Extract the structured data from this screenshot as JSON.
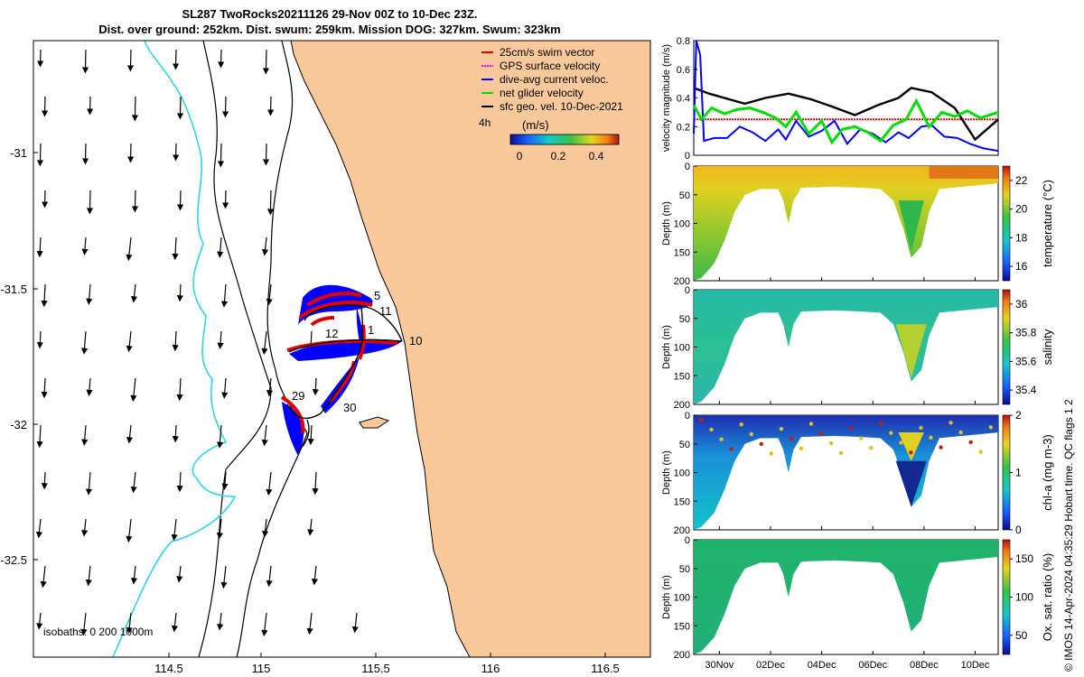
{
  "header": {
    "title_line1": "SL287 TwoRocks20211126 29-Nov 00Z to 10-Dec 23Z.",
    "title_line2": "Dist. over ground: 252km. Dist. swum: 259km. Mission DOG: 327km. Swum: 323km"
  },
  "map": {
    "x_ticks": [
      "114.5",
      "115",
      "115.5",
      "116",
      "116.5"
    ],
    "y_ticks": [
      "-31",
      "-31.5",
      "-32",
      "-32.5"
    ],
    "isobaths_label": "isobaths: 0   200  1000m",
    "legend": [
      {
        "label": "25cm/s swim vector",
        "color": "#e00000"
      },
      {
        "label": "GPS surface velocity",
        "color": "#ff00ff"
      },
      {
        "label": "dive-avg current veloc.",
        "color": "#0000ff"
      },
      {
        "label": "net glider velocity",
        "color": "#00dd00"
      },
      {
        "label": "sfc geo. vel. 10-Dec-2021",
        "color": "#000000"
      }
    ],
    "legend_marker": "4h",
    "colorbar": {
      "label": "(m/s)",
      "ticks": [
        "0",
        "0.2",
        "0.4"
      ]
    },
    "day_labels": [
      "5",
      "11",
      "1",
      "12",
      "10",
      "29",
      "30"
    ],
    "colors": {
      "land": "#f9c99b",
      "sea": "#ffffff",
      "isobath_200": "#00e0e0",
      "glider_blue": "#0000ff",
      "glider_red": "#e00000"
    }
  },
  "chart_data": [
    {
      "type": "line",
      "ylabel": "velocity magnitude (m/s)",
      "ylim": [
        0,
        0.8
      ],
      "y_ticks": [
        "0",
        "0.2",
        "0.4",
        "0.6",
        "0.8"
      ],
      "xlim_days": [
        29,
        40.9
      ],
      "series": [
        {
          "name": "25cm/s swim vector",
          "color": "#e00000",
          "x": [
            29,
            40.9
          ],
          "values": [
            0.25,
            0.25
          ]
        },
        {
          "name": "sfc geo. vel. 10-Dec-2021",
          "color": "#000000",
          "x": [
            29,
            29.6,
            30.4,
            31.0,
            31.8,
            32.7,
            33.6,
            34.4,
            35.3,
            36.2,
            37.0,
            37.5,
            38.3,
            39.2,
            40.0,
            40.9
          ],
          "values": [
            0.47,
            0.43,
            0.39,
            0.36,
            0.4,
            0.43,
            0.39,
            0.34,
            0.28,
            0.35,
            0.4,
            0.47,
            0.44,
            0.33,
            0.11,
            0.25
          ]
        },
        {
          "name": "dive-avg current veloc.",
          "color": "#0000ff",
          "x": [
            29,
            29.1,
            29.25,
            29.4,
            29.8,
            30.3,
            30.8,
            31.3,
            31.8,
            32.3,
            32.6,
            33.0,
            33.5,
            34.0,
            34.5,
            35.0,
            35.5,
            36.0,
            36.5,
            37.0,
            37.4,
            37.9,
            38.3,
            38.8,
            39.3,
            39.8,
            40.3,
            40.9
          ],
          "values": [
            0.15,
            0.8,
            0.7,
            0.1,
            0.12,
            0.12,
            0.2,
            0.16,
            0.1,
            0.18,
            0.11,
            0.24,
            0.13,
            0.17,
            0.24,
            0.08,
            0.18,
            0.15,
            0.09,
            0.16,
            0.12,
            0.2,
            0.21,
            0.13,
            0.12,
            0.08,
            0.05,
            0.03
          ]
        },
        {
          "name": "net glider velocity",
          "color": "#00dd00",
          "x": [
            29,
            29.3,
            29.7,
            30.2,
            30.7,
            31.2,
            31.7,
            32.2,
            32.6,
            33.0,
            33.5,
            34.0,
            34.4,
            34.8,
            35.3,
            35.8,
            36.3,
            36.8,
            37.3,
            37.7,
            38.2,
            38.7,
            39.2,
            39.7,
            40.2,
            40.9
          ],
          "values": [
            0.35,
            0.25,
            0.33,
            0.29,
            0.32,
            0.33,
            0.3,
            0.26,
            0.2,
            0.3,
            0.15,
            0.24,
            0.09,
            0.18,
            0.2,
            0.16,
            0.1,
            0.21,
            0.25,
            0.38,
            0.2,
            0.3,
            0.27,
            0.31,
            0.26,
            0.3
          ]
        }
      ]
    },
    {
      "type": "heatmap",
      "ylabel": "Depth (m)",
      "colorbar_label": "temperature (°C)",
      "ylim": [
        200,
        0
      ],
      "y_ticks": [
        "0",
        "50",
        "100",
        "150",
        "200"
      ],
      "colorbar_ticks": [
        "16",
        "18",
        "20",
        "22"
      ],
      "vrange": [
        15,
        23
      ],
      "x_ticks": [
        "30Nov",
        "02Dec",
        "04Dec",
        "06Dec",
        "08Dec",
        "10Dec"
      ],
      "x_days": [
        30,
        32,
        34,
        36,
        38,
        40
      ]
    },
    {
      "type": "heatmap",
      "ylabel": "Depth (m)",
      "colorbar_label": "salinity",
      "ylim": [
        200,
        0
      ],
      "y_ticks": [
        "0",
        "50",
        "100",
        "150",
        "200"
      ],
      "colorbar_ticks": [
        "35.4",
        "35.6",
        "35.8",
        "36"
      ],
      "vrange": [
        35.3,
        36.1
      ],
      "x_ticks": [
        "30Nov",
        "02Dec",
        "04Dec",
        "06Dec",
        "08Dec",
        "10Dec"
      ],
      "x_days": [
        30,
        32,
        34,
        36,
        38,
        40
      ]
    },
    {
      "type": "heatmap",
      "ylabel": "Depth (m)",
      "colorbar_label": "chl-a (mg m-3)",
      "ylim": [
        200,
        0
      ],
      "y_ticks": [
        "0",
        "50",
        "100",
        "150",
        "200"
      ],
      "colorbar_ticks": [
        "0",
        "1",
        "2"
      ],
      "vrange": [
        0,
        2
      ],
      "x_ticks": [
        "30Nov",
        "02Dec",
        "04Dec",
        "06Dec",
        "08Dec",
        "10Dec"
      ],
      "x_days": [
        30,
        32,
        34,
        36,
        38,
        40
      ]
    },
    {
      "type": "heatmap",
      "ylabel": "Depth (m)",
      "colorbar_label": "Ox. sat. ratio (%)",
      "ylim": [
        200,
        0
      ],
      "y_ticks": [
        "0",
        "50",
        "100",
        "150",
        "200"
      ],
      "colorbar_ticks": [
        "50",
        "100",
        "150"
      ],
      "vrange": [
        25,
        175
      ],
      "x_ticks": [
        "30Nov",
        "02Dec",
        "04Dec",
        "06Dec",
        "08Dec",
        "10Dec"
      ],
      "x_days": [
        30,
        32,
        34,
        36,
        38,
        40
      ]
    }
  ],
  "footer": {
    "credit": "© IMOS 14-Apr-2024 04:35:29 Hobart time. QC flags 1  2"
  }
}
